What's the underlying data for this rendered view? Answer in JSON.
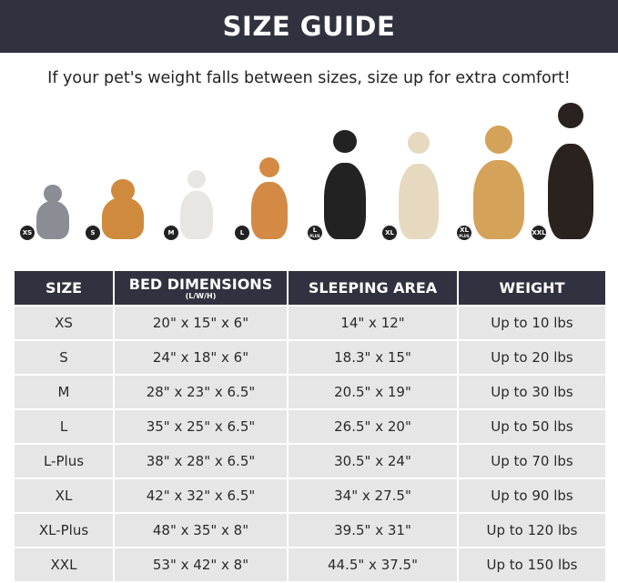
{
  "header": {
    "title": "SIZE GUIDE"
  },
  "subtitle": "If your pet's weight falls between sizes, size up for extra comfort!",
  "pets": [
    {
      "badge": "XS",
      "plus": "",
      "animal": "cat",
      "color": "#8a8d94"
    },
    {
      "badge": "S",
      "plus": "",
      "animal": "pomeranian",
      "color": "#d08a3e"
    },
    {
      "badge": "M",
      "plus": "",
      "animal": "french-bulldog",
      "color": "#e8e6e3"
    },
    {
      "badge": "L",
      "plus": "",
      "animal": "shiba-inu",
      "color": "#d48a45"
    },
    {
      "badge": "L",
      "plus": "PLUS",
      "animal": "border-collie",
      "color": "#222222"
    },
    {
      "badge": "XL",
      "plus": "",
      "animal": "labrador",
      "color": "#e6d9bf"
    },
    {
      "badge": "XL",
      "plus": "PLUS",
      "animal": "golden-retriever",
      "color": "#d5a25a"
    },
    {
      "badge": "XXL",
      "plus": "",
      "animal": "doberman",
      "color": "#2a221e"
    }
  ],
  "table": {
    "headers": {
      "size": "SIZE",
      "bed": "BED DIMENSIONS",
      "bed_sub": "(L/W/H)",
      "area": "SLEEPING AREA",
      "weight": "WEIGHT"
    },
    "rows": [
      {
        "size": "XS",
        "bed": "20\" x 15\" x 6\"",
        "area": "14\" x 12\"",
        "weight": "Up to 10 lbs"
      },
      {
        "size": "S",
        "bed": "24\" x 18\" x 6\"",
        "area": "18.3\" x 15\"",
        "weight": "Up to 20 lbs"
      },
      {
        "size": "M",
        "bed": "28\" x 23\" x 6.5\"",
        "area": "20.5\" x 19\"",
        "weight": "Up to 30 lbs"
      },
      {
        "size": "L",
        "bed": "35\" x 25\" x 6.5\"",
        "area": "26.5\" x 20\"",
        "weight": "Up to 50 lbs"
      },
      {
        "size": "L-Plus",
        "bed": "38\" x 28\" x 6.5\"",
        "area": "30.5\" x 24\"",
        "weight": "Up to 70 lbs"
      },
      {
        "size": "XL",
        "bed": "42\" x 32\" x 6.5\"",
        "area": "34\" x 27.5\"",
        "weight": "Up to 90 lbs"
      },
      {
        "size": "XL-Plus",
        "bed": "48\" x 35\" x 8\"",
        "area": "39.5\" x 31\"",
        "weight": "Up to 120 lbs"
      },
      {
        "size": "XXL",
        "bed": "53\" x 42\" x 8\"",
        "area": "44.5\" x 37.5\"",
        "weight": "Up to 150 lbs"
      }
    ]
  }
}
